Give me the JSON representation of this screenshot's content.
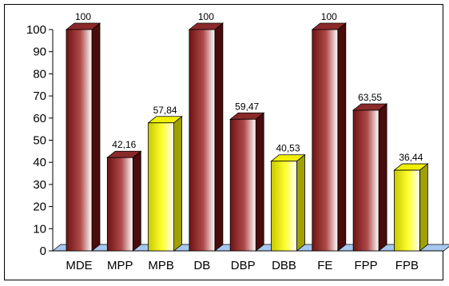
{
  "chart_data": {
    "type": "bar",
    "style": "3d-column",
    "categories": [
      "MDE",
      "MPP",
      "MPB",
      "DB",
      "DBP",
      "DBB",
      "FE",
      "FPP",
      "FPB"
    ],
    "values": [
      100,
      42.16,
      57.84,
      100,
      59.47,
      40.53,
      100,
      63.55,
      36.44
    ],
    "data_labels": [
      "100",
      "42,16",
      "57,84",
      "100",
      "59,47",
      "40,53",
      "100",
      "63,55",
      "36,44"
    ],
    "bar_colors": [
      "red",
      "red",
      "yellow",
      "red",
      "red",
      "yellow",
      "red",
      "red",
      "yellow"
    ],
    "ylim": [
      0,
      100
    ],
    "yticks": [
      0,
      10,
      20,
      30,
      40,
      50,
      60,
      70,
      80,
      90,
      100
    ],
    "title": "",
    "xlabel": "",
    "ylabel": "",
    "grid": false,
    "legend": "none"
  },
  "colors": {
    "red_dark": "#6e1414",
    "red_mid": "#b04a4a",
    "red_light": "#ffffff",
    "yellow_dark": "#c8c800",
    "yellow_mid": "#ffff30",
    "yellow_light": "#ffffff",
    "floor": "#a6c8f0"
  }
}
